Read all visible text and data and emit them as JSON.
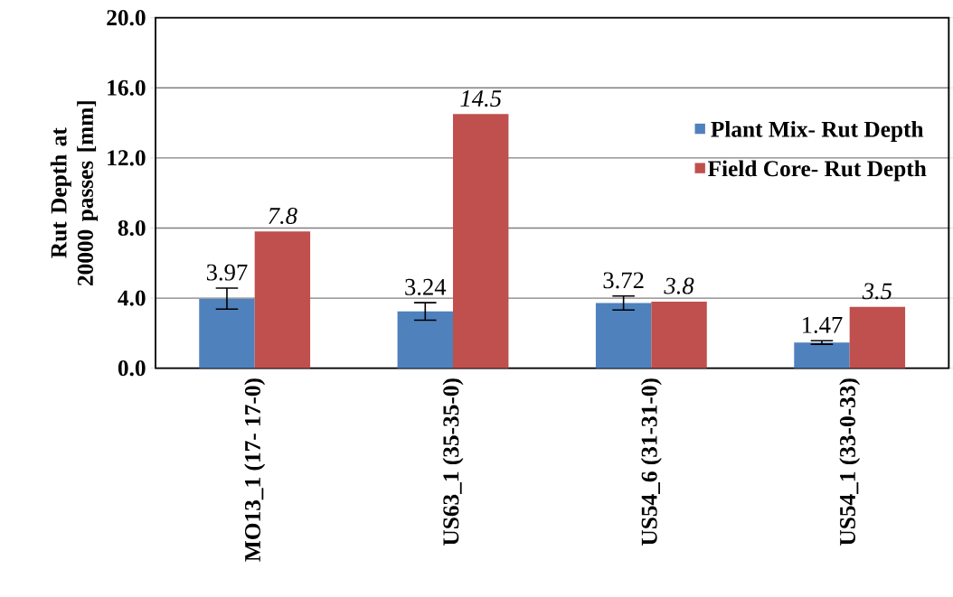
{
  "chart_data": {
    "type": "bar",
    "ylabel": "Rut Depth at 20000 passes [mm]",
    "categories": [
      "MO13_1 (17- 17-0)",
      "US63_1 (35-35-0)",
      "US54_6 (31-31-0)",
      "US54_1 (33-0-33)"
    ],
    "series": [
      {
        "name": "Plant Mix- Rut Depth",
        "color": "#4f81bd",
        "values": [
          3.97,
          3.24,
          3.72,
          1.47
        ],
        "errors": [
          0.6,
          0.5,
          0.4,
          0.1
        ],
        "value_labels": [
          "3.97",
          "3.24",
          "3.72",
          "1.47"
        ]
      },
      {
        "name": "Field Core- Rut Depth",
        "color": "#c0504d",
        "values": [
          7.8,
          14.5,
          3.8,
          3.5
        ],
        "value_labels": [
          "*7.8*",
          "*14.5*",
          "*3.8*",
          "*3.5*"
        ]
      }
    ],
    "ylim": [
      0,
      20
    ],
    "yticks": [
      {
        "value": 0,
        "label": "0.0"
      },
      {
        "value": 4,
        "label": "4.0"
      },
      {
        "value": 8,
        "label": "8.0"
      },
      {
        "value": 12,
        "label": "12.0"
      },
      {
        "value": 16,
        "label": "16.0"
      },
      {
        "value": 20,
        "label": "20.0"
      }
    ],
    "grid": "y",
    "legend": "right"
  }
}
